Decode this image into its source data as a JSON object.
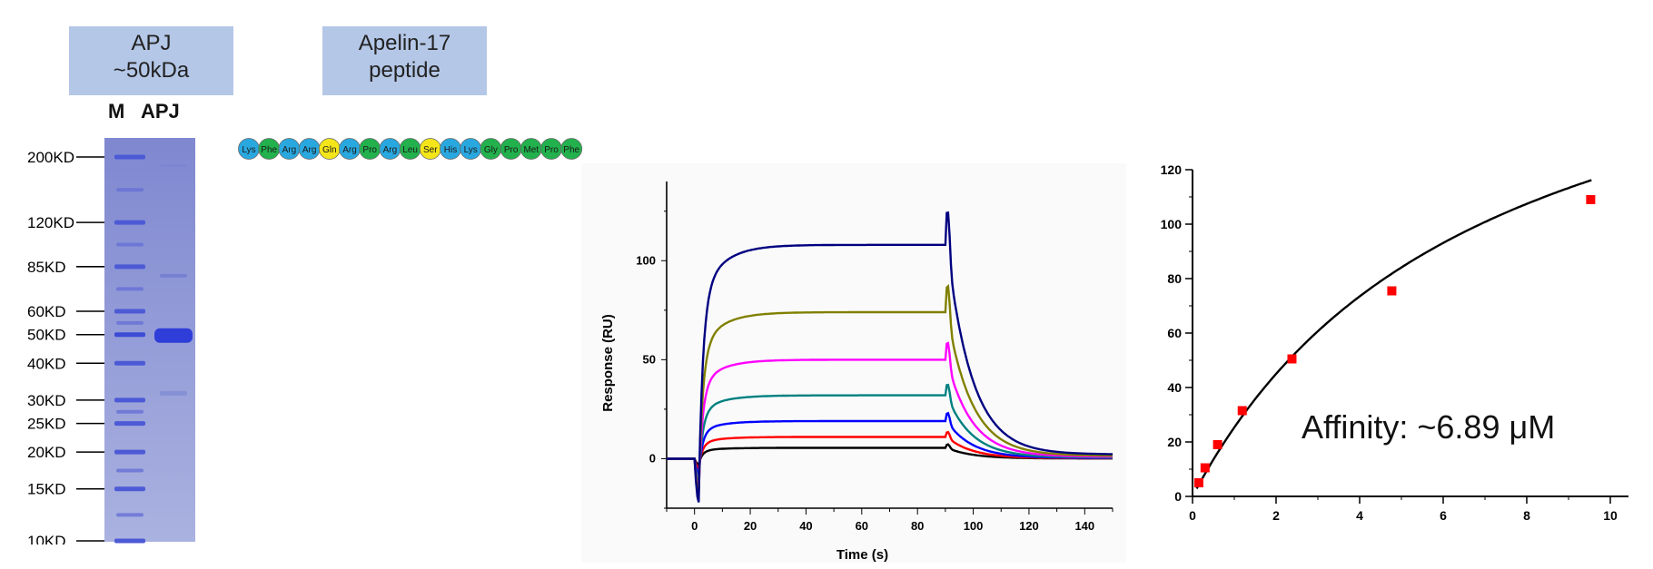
{
  "header": {
    "protein_box": [
      "APJ",
      "~50kDa"
    ],
    "peptide_box": [
      "Apelin-17",
      "peptide"
    ]
  },
  "gel": {
    "lanes": [
      "M",
      "APJ"
    ],
    "markers": [
      "200KD",
      "120KD",
      "85KD",
      "60KD",
      "50KD",
      "40KD",
      "30KD",
      "25KD",
      "20KD",
      "15KD",
      "10KD"
    ],
    "marker_kd": [
      200,
      120,
      85,
      60,
      50,
      40,
      30,
      25,
      20,
      15,
      10
    ],
    "sample_band_kd": 50
  },
  "peptide": {
    "residues": [
      "Lys",
      "Phe",
      "Arg",
      "Arg",
      "Gln",
      "Arg",
      "Pro",
      "Arg",
      "Leu",
      "Ser",
      "His",
      "Lys",
      "Gly",
      "Pro",
      "Met",
      "Pro",
      "Phe"
    ],
    "colors": {
      "Lys": "#29a8e0",
      "Arg": "#29a8e0",
      "His": "#29a8e0",
      "Phe": "#22b14c",
      "Pro": "#22b14c",
      "Leu": "#22b14c",
      "Gly": "#22b14c",
      "Met": "#22b14c",
      "Gln": "#f3e51a",
      "Ser": "#f3e51a"
    }
  },
  "chart_data": [
    {
      "type": "line",
      "xlabel": "Time (s)",
      "ylabel": "Response (RU)",
      "xlim": [
        -10,
        150
      ],
      "ylim": [
        -25,
        140
      ],
      "xticks": [
        0,
        20,
        40,
        60,
        80,
        100,
        120,
        140
      ],
      "yticks": [
        0,
        50,
        100
      ],
      "injection_start_s": 0,
      "injection_end_s": 90,
      "series": [
        {
          "color": "#000000",
          "plateau": 5.5,
          "spike": 2,
          "dip": -3
        },
        {
          "color": "#ff0000",
          "plateau": 11,
          "spike": 3,
          "dip": -5
        },
        {
          "color": "#0000ff",
          "plateau": 19,
          "spike": 5,
          "dip": -8
        },
        {
          "color": "#008080",
          "plateau": 32,
          "spike": 7,
          "dip": -12
        },
        {
          "color": "#ff00ff",
          "plateau": 50,
          "spike": 11,
          "dip": -16
        },
        {
          "color": "#808000",
          "plateau": 74,
          "spike": 17,
          "dip": -18
        },
        {
          "color": "#000080",
          "plateau": 108,
          "spike": 22,
          "dip": -22
        }
      ]
    },
    {
      "type": "scatter",
      "xlim": [
        0,
        10
      ],
      "ylim": [
        0,
        120
      ],
      "xticks": [
        0,
        2,
        4,
        6,
        8,
        10
      ],
      "yticks": [
        0,
        20,
        40,
        60,
        80,
        100,
        120
      ],
      "points": [
        {
          "x": 0.15,
          "y": 5
        },
        {
          "x": 0.3,
          "y": 10.5
        },
        {
          "x": 0.6,
          "y": 19
        },
        {
          "x": 1.19,
          "y": 31.5
        },
        {
          "x": 2.38,
          "y": 50.5
        },
        {
          "x": 4.77,
          "y": 75.5
        },
        {
          "x": 9.53,
          "y": 109
        }
      ],
      "fit": {
        "Rmax": 200,
        "KD_uM": 6.89
      },
      "annotation": "Affinity:  ~6.89 μM",
      "marker_color": "#ff0000"
    }
  ]
}
